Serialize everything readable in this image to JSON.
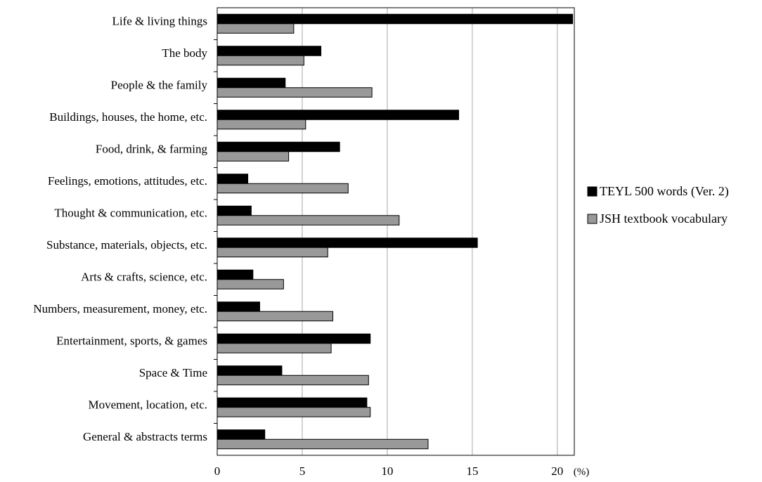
{
  "chart_data": {
    "type": "bar",
    "orientation": "horizontal",
    "categories": [
      "Life & living things",
      "The body",
      "People & the family",
      "Buildings, houses, the home, etc.",
      "Food, drink, & farming",
      "Feelings, emotions, attitudes, etc.",
      "Thought & communication, etc.",
      "Substance, materials, objects, etc.",
      "Arts & crafts, science, etc.",
      "Numbers, measurement, money, etc.",
      "Entertainment, sports, & games",
      "Space & Time",
      "Movement, location, etc.",
      "General & abstracts terms"
    ],
    "series": [
      {
        "name": "TEYL 500 words (Ver. 2)",
        "color": "#000000",
        "values": [
          20.9,
          6.1,
          4.0,
          14.2,
          7.2,
          1.8,
          2.0,
          15.3,
          2.1,
          2.5,
          9.0,
          3.8,
          8.8,
          2.8
        ]
      },
      {
        "name": "JSH textbook vocabulary",
        "color": "#999999",
        "values": [
          4.5,
          5.1,
          9.1,
          5.2,
          4.2,
          7.7,
          10.7,
          6.5,
          3.9,
          6.8,
          6.7,
          8.9,
          9.0,
          12.4
        ]
      }
    ],
    "xlim": [
      0,
      21
    ],
    "xticks": [
      0,
      5,
      10,
      15,
      20
    ],
    "x_unit": "(%)",
    "title": "",
    "xlabel": "",
    "ylabel": "",
    "grid": "vertical",
    "legend_position": "right"
  }
}
